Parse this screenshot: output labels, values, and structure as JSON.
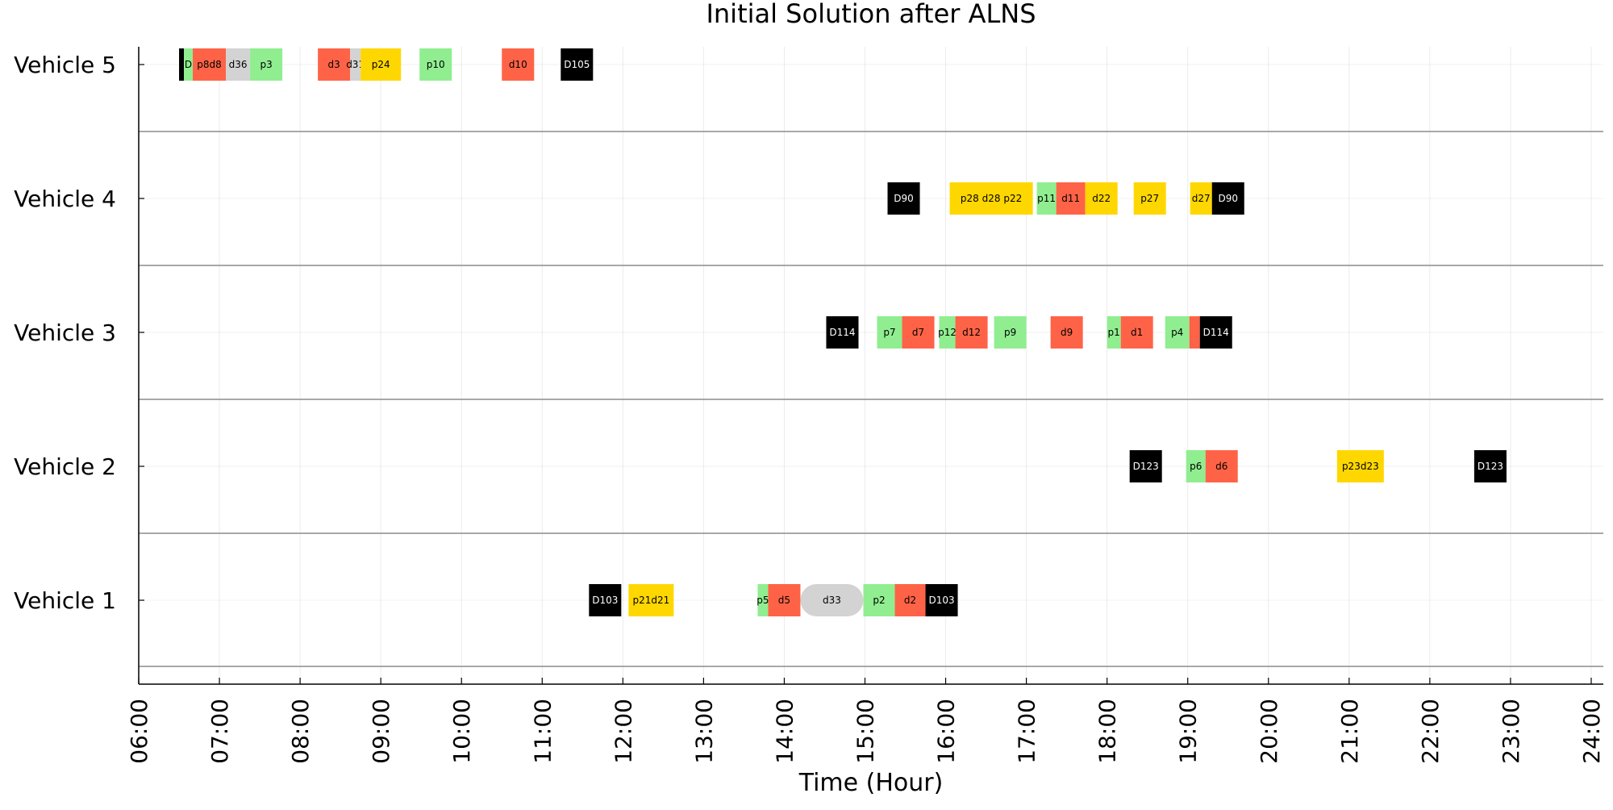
{
  "chart_data": {
    "type": "gantt",
    "title": "Initial Solution after ALNS",
    "xlabel": "Time (Hour)",
    "ylabel": "",
    "xlim": [
      6.0,
      24.15
    ],
    "grid": true,
    "legend": "none",
    "x_ticks": [
      "06:00",
      "07:00",
      "08:00",
      "09:00",
      "10:00",
      "11:00",
      "12:00",
      "13:00",
      "14:00",
      "15:00",
      "16:00",
      "17:00",
      "18:00",
      "19:00",
      "20:00",
      "21:00",
      "22:00",
      "23:00",
      "24:00"
    ],
    "colors": {
      "depot": "#000000",
      "pickup": "#90EE90",
      "delivery": "#FF6347",
      "inter": "#FFD700",
      "wait": "#D3D3D3"
    },
    "vehicles": [
      {
        "name": "Vehicle 5",
        "segments": [
          {
            "start": 6.5,
            "end": 6.56,
            "kind": "depot",
            "label": ""
          },
          {
            "start": 6.56,
            "end": 6.67,
            "kind": "pickup",
            "label": "D"
          },
          {
            "start": 6.67,
            "end": 7.08,
            "kind": "delivery",
            "label": "p8d8"
          },
          {
            "start": 7.08,
            "end": 7.38,
            "kind": "wait",
            "label": "d36"
          },
          {
            "start": 7.38,
            "end": 7.78,
            "kind": "pickup",
            "label": "p3"
          },
          {
            "start": 8.22,
            "end": 8.62,
            "kind": "delivery",
            "label": "d3"
          },
          {
            "start": 8.62,
            "end": 8.75,
            "kind": "wait",
            "label": "d31"
          },
          {
            "start": 8.75,
            "end": 9.25,
            "kind": "inter",
            "label": "p24"
          },
          {
            "start": 9.48,
            "end": 9.88,
            "kind": "pickup",
            "label": "p10"
          },
          {
            "start": 10.5,
            "end": 10.9,
            "kind": "delivery",
            "label": "d10"
          },
          {
            "start": 11.23,
            "end": 11.63,
            "kind": "depot",
            "label": "D105"
          }
        ]
      },
      {
        "name": "Vehicle 4",
        "segments": [
          {
            "start": 15.28,
            "end": 15.68,
            "kind": "depot",
            "label": "D90"
          },
          {
            "start": 16.05,
            "end": 17.08,
            "kind": "inter",
            "label": "p28 d28 p22"
          },
          {
            "start": 17.13,
            "end": 17.37,
            "kind": "pickup",
            "label": "p11"
          },
          {
            "start": 17.37,
            "end": 17.73,
            "kind": "delivery",
            "label": "d11"
          },
          {
            "start": 17.73,
            "end": 18.13,
            "kind": "inter",
            "label": "d22"
          },
          {
            "start": 18.33,
            "end": 18.73,
            "kind": "inter",
            "label": "p27"
          },
          {
            "start": 19.03,
            "end": 19.3,
            "kind": "inter",
            "label": "d27"
          },
          {
            "start": 19.3,
            "end": 19.7,
            "kind": "depot",
            "label": "D90"
          }
        ]
      },
      {
        "name": "Vehicle 3",
        "segments": [
          {
            "start": 14.52,
            "end": 14.92,
            "kind": "depot",
            "label": "D114"
          },
          {
            "start": 15.15,
            "end": 15.46,
            "kind": "pickup",
            "label": "p7"
          },
          {
            "start": 15.46,
            "end": 15.86,
            "kind": "delivery",
            "label": "d7"
          },
          {
            "start": 15.92,
            "end": 16.12,
            "kind": "pickup",
            "label": "p12"
          },
          {
            "start": 16.12,
            "end": 16.52,
            "kind": "delivery",
            "label": "d12"
          },
          {
            "start": 16.6,
            "end": 17.0,
            "kind": "pickup",
            "label": "p9"
          },
          {
            "start": 17.3,
            "end": 17.7,
            "kind": "delivery",
            "label": "d9"
          },
          {
            "start": 18.0,
            "end": 18.17,
            "kind": "pickup",
            "label": "p1"
          },
          {
            "start": 18.17,
            "end": 18.57,
            "kind": "delivery",
            "label": "d1"
          },
          {
            "start": 18.72,
            "end": 19.02,
            "kind": "pickup",
            "label": "p4"
          },
          {
            "start": 19.02,
            "end": 19.15,
            "kind": "delivery",
            "label": ""
          },
          {
            "start": 19.15,
            "end": 19.55,
            "kind": "depot",
            "label": "D114"
          }
        ]
      },
      {
        "name": "Vehicle 2",
        "segments": [
          {
            "start": 18.28,
            "end": 18.68,
            "kind": "depot",
            "label": "D123"
          },
          {
            "start": 18.98,
            "end": 19.22,
            "kind": "pickup",
            "label": "p6"
          },
          {
            "start": 19.22,
            "end": 19.62,
            "kind": "delivery",
            "label": "d6"
          },
          {
            "start": 20.85,
            "end": 21.43,
            "kind": "inter",
            "label": "p23d23"
          },
          {
            "start": 22.55,
            "end": 22.95,
            "kind": "depot",
            "label": "D123"
          }
        ]
      },
      {
        "name": "Vehicle 1",
        "segments": [
          {
            "start": 11.58,
            "end": 11.98,
            "kind": "depot",
            "label": "D103"
          },
          {
            "start": 12.07,
            "end": 12.63,
            "kind": "inter",
            "label": "p21d21"
          },
          {
            "start": 13.67,
            "end": 13.8,
            "kind": "pickup",
            "label": "p5"
          },
          {
            "start": 13.8,
            "end": 14.2,
            "kind": "delivery",
            "label": "d5"
          },
          {
            "start": 14.2,
            "end": 14.98,
            "kind": "wait",
            "label": "d33"
          },
          {
            "start": 14.98,
            "end": 15.37,
            "kind": "pickup",
            "label": "p2"
          },
          {
            "start": 15.37,
            "end": 15.75,
            "kind": "delivery",
            "label": "d2"
          },
          {
            "start": 15.75,
            "end": 16.15,
            "kind": "depot",
            "label": "D103"
          }
        ]
      }
    ]
  }
}
